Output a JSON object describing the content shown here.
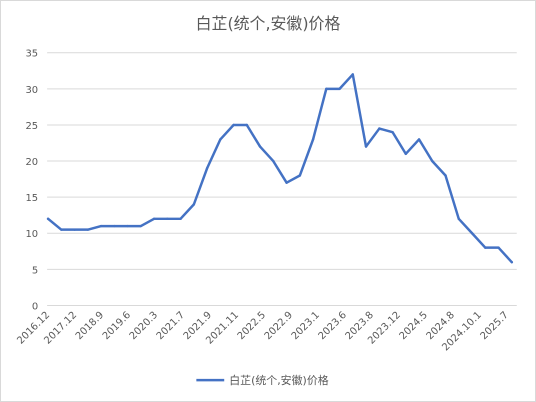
{
  "chart_data": {
    "type": "line",
    "title": "白芷(统个,安徽)价格",
    "xlabel": "",
    "ylabel": "",
    "ylim": [
      0,
      35
    ],
    "yticks": [
      0,
      5,
      10,
      15,
      20,
      25,
      30,
      35
    ],
    "grid": true,
    "legend_position": "bottom",
    "color": "#4472c4",
    "x_tick_labels": [
      "2016.12",
      "2017.12",
      "2018.9",
      "2019.6",
      "2020.3",
      "2021.7",
      "2021.9",
      "2021.11",
      "2022.5",
      "2022.9",
      "2023.1",
      "2023.6",
      "2023.8",
      "2023.12",
      "2024.5",
      "2024.8",
      "2024.10.1",
      "2025.7"
    ],
    "series": [
      {
        "name": "白芷(统个,安徽)价格",
        "values": [
          12,
          10.5,
          10.5,
          10.5,
          11,
          11,
          11,
          11,
          12,
          12,
          12,
          14,
          19,
          23,
          25,
          25,
          22,
          20,
          17,
          18,
          23,
          30,
          30,
          32,
          22,
          24.5,
          24,
          21,
          23,
          20,
          18,
          12,
          10,
          8,
          8,
          6
        ]
      }
    ]
  }
}
